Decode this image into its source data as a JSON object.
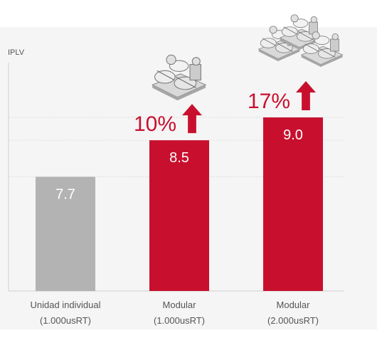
{
  "colors": {
    "baseline_bar": "#b3b3b3",
    "modular_bar": "#c8102e",
    "accent": "#c8102e",
    "background": "#f5f5f5"
  },
  "chart_data": {
    "type": "bar",
    "ylabel": "IPLV",
    "categories": [
      [
        "Unidad individual",
        "(1.000usRT)"
      ],
      [
        "Modular",
        "(1.000usRT)"
      ],
      [
        "Modular",
        "(2.000usRT)"
      ]
    ],
    "values": [
      7.7,
      8.5,
      9.0
    ],
    "value_labels": [
      "7.7",
      "8.5",
      "9.0"
    ],
    "ylim": [
      5.2,
      10.2
    ],
    "grid": true,
    "gridlines": [
      7.7,
      8.5,
      9.0
    ],
    "annotations": [
      {
        "category_index": 1,
        "text": "10%",
        "icon": "arrow-up-icon",
        "image": "chiller-unit-icon",
        "units": 1
      },
      {
        "category_index": 2,
        "text": "17%",
        "icon": "arrow-up-icon",
        "image": "chiller-unit-icon",
        "units": 3
      }
    ]
  }
}
